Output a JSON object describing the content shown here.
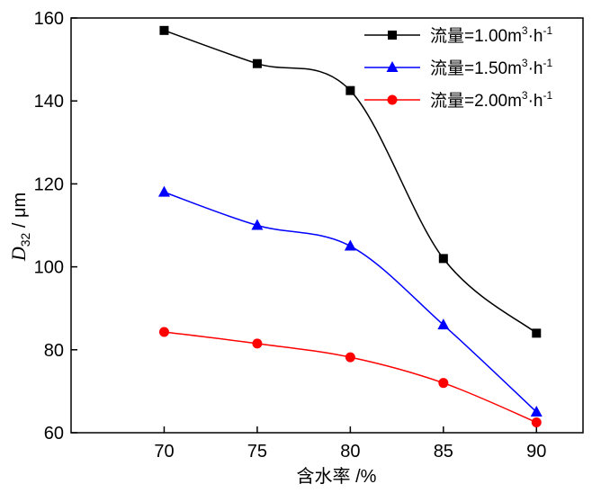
{
  "chart_data": {
    "type": "line",
    "x": [
      70,
      75,
      80,
      85,
      90
    ],
    "xlabel": "含水率 /%",
    "ylabel": {
      "symbol": "D",
      "subscript": "32",
      "unit": " / μm"
    },
    "xlim": [
      65,
      92.5
    ],
    "ylim": [
      60,
      160
    ],
    "xticks": [
      "70",
      "75",
      "80",
      "85",
      "90"
    ],
    "yticks": [
      "60",
      "80",
      "100",
      "120",
      "140",
      "160"
    ],
    "legend_position": "top-right",
    "grid": false,
    "series": [
      {
        "name": "流量=1.00m³·h⁻¹",
        "label_base": "流量=1.00m",
        "label_sup": "3",
        "label_mid": "·h",
        "label_sup2": "-1",
        "color": "#000000",
        "marker": "square",
        "values": [
          157,
          149,
          142.5,
          102,
          84
        ]
      },
      {
        "name": "流量=1.50m³·h⁻¹",
        "label_base": "流量=1.50m",
        "label_sup": "3",
        "label_mid": "·h",
        "label_sup2": "-1",
        "color": "#0000ff",
        "marker": "triangle",
        "values": [
          118,
          110,
          105,
          86,
          65
        ]
      },
      {
        "name": "流量=2.00m³·h⁻¹",
        "label_base": "流量=2.00m",
        "label_sup": "3",
        "label_mid": "·h",
        "label_sup2": "-1",
        "color": "#ff0000",
        "marker": "circle",
        "values": [
          84.3,
          81.5,
          78.2,
          72,
          62.5
        ]
      }
    ]
  }
}
